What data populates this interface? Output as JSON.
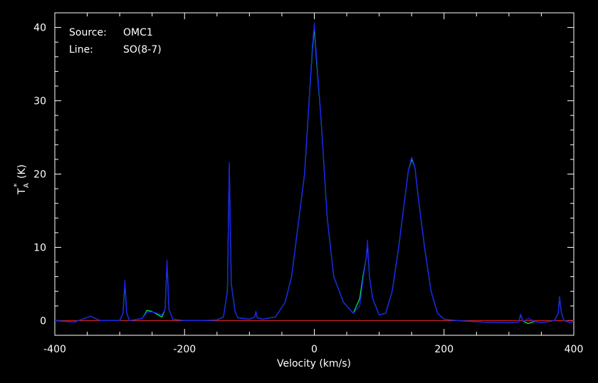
{
  "annotation": {
    "source_label": "Source:",
    "source_value": "OMC1",
    "line_label": "Line:",
    "line_value": "SO(8-7)"
  },
  "chart_data": {
    "type": "line",
    "xlabel": "Velocity (km/s)",
    "ylabel": "T",
    "ylabel_sub": "A",
    "ylabel_sup": "*",
    "ylabel_unit": "(K)",
    "xlim": [
      -400,
      400
    ],
    "ylim": [
      -2,
      42
    ],
    "x_ticks": [
      -400,
      -200,
      0,
      200,
      400
    ],
    "y_ticks": [
      0,
      10,
      20,
      30,
      40
    ],
    "grid": false,
    "baseline": {
      "y": 0,
      "color": "#ff2020"
    },
    "series": [
      {
        "color": "#00ee44",
        "x": [
          -400,
          -370,
          -345,
          -340,
          -330,
          -300,
          -295,
          -292,
          -289,
          -285,
          -265,
          -258,
          -252,
          -245,
          -235,
          -230,
          -227,
          -224,
          -218,
          -200,
          -170,
          -150,
          -140,
          -134,
          -131,
          -128,
          -122,
          -118,
          -110,
          -100,
          -92,
          -90,
          -88,
          -80,
          -60,
          -45,
          -35,
          -25,
          -15,
          -8,
          -3,
          0,
          3,
          10,
          20,
          30,
          45,
          60,
          70,
          75,
          80,
          82,
          85,
          90,
          100,
          110,
          120,
          130,
          140,
          145,
          150,
          155,
          160,
          170,
          180,
          190,
          200,
          220,
          260,
          300,
          315,
          318,
          322,
          330,
          340,
          350,
          370,
          376,
          378,
          381,
          385,
          395,
          400
        ],
        "y": [
          0,
          -0.2,
          0.6,
          0.4,
          0,
          0,
          1.0,
          5.0,
          1.0,
          0,
          0.3,
          1.4,
          1.3,
          1.0,
          0.5,
          1.5,
          8.0,
          1.5,
          0.2,
          0,
          0,
          0.1,
          0.5,
          4.0,
          21.2,
          5.0,
          1.2,
          0.4,
          0.3,
          0.2,
          0.5,
          1.2,
          0.4,
          0.2,
          0.5,
          2.5,
          6.0,
          13.0,
          20.0,
          30.0,
          37.0,
          40.0,
          36.0,
          28.0,
          14.0,
          6.0,
          2.5,
          1.0,
          3.0,
          6.0,
          8.5,
          10.5,
          6.0,
          3.0,
          0.8,
          1.0,
          4.0,
          10.0,
          17.0,
          20.5,
          22.0,
          21.0,
          17.0,
          10.0,
          4.0,
          1.0,
          0.2,
          0,
          -0.2,
          -0.3,
          -0.2,
          0.8,
          -0.1,
          -0.4,
          -0.1,
          -0.3,
          0,
          1.0,
          3.2,
          1.0,
          0,
          -0.3,
          0
        ]
      },
      {
        "color": "#1a1aff",
        "x": [
          -400,
          -370,
          -345,
          -340,
          -330,
          -300,
          -295,
          -292,
          -289,
          -285,
          -265,
          -258,
          -252,
          -245,
          -235,
          -230,
          -227,
          -224,
          -218,
          -200,
          -170,
          -150,
          -140,
          -134,
          -131,
          -128,
          -122,
          -118,
          -110,
          -100,
          -92,
          -90,
          -88,
          -80,
          -60,
          -45,
          -35,
          -25,
          -15,
          -8,
          -3,
          0,
          3,
          10,
          20,
          30,
          45,
          60,
          70,
          75,
          80,
          82,
          85,
          90,
          100,
          110,
          120,
          130,
          140,
          145,
          150,
          155,
          160,
          170,
          180,
          190,
          200,
          220,
          260,
          300,
          315,
          318,
          322,
          330,
          340,
          350,
          370,
          376,
          378,
          381,
          385,
          395,
          400
        ],
        "y": [
          0,
          -0.2,
          0.6,
          0.4,
          0,
          0,
          1.0,
          5.5,
          1.0,
          0,
          0.3,
          1.2,
          1.2,
          1.1,
          0.8,
          1.5,
          8.3,
          1.5,
          0.2,
          0,
          0,
          0.1,
          0.5,
          4.0,
          21.6,
          5.0,
          1.2,
          0.4,
          0.3,
          0.2,
          0.5,
          1.3,
          0.4,
          0.2,
          0.5,
          2.5,
          6.0,
          13.0,
          20.0,
          30.0,
          37.5,
          40.6,
          36.5,
          28.0,
          14.0,
          6.0,
          2.5,
          1.0,
          2.0,
          5.5,
          8.5,
          11.0,
          6.0,
          3.0,
          0.8,
          1.0,
          4.0,
          10.0,
          17.0,
          20.5,
          22.3,
          21.0,
          17.0,
          10.0,
          4.0,
          1.0,
          0.2,
          0,
          -0.2,
          -0.3,
          -0.2,
          0.9,
          -0.1,
          0.3,
          -0.1,
          -0.3,
          0,
          1.0,
          3.3,
          1.0,
          0,
          -0.3,
          0
        ]
      }
    ]
  }
}
